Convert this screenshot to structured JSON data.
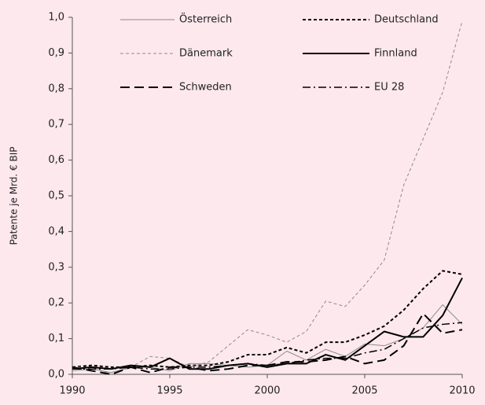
{
  "chart_data": {
    "type": "line",
    "y_label": "Patente je Mrd. € BIP",
    "x": [
      1990,
      1991,
      1992,
      1993,
      1994,
      1995,
      1996,
      1997,
      1998,
      1999,
      2000,
      2001,
      2002,
      2003,
      2004,
      2005,
      2006,
      2007,
      2008,
      2009,
      2010
    ],
    "xlim": [
      1990,
      2010
    ],
    "xticks": [
      1990,
      1995,
      2000,
      2005,
      2010
    ],
    "ylim": [
      0,
      1
    ],
    "yticks": [
      {
        "value": 0,
        "label": "0,0"
      },
      {
        "value": 0.1,
        "label": "0,1"
      },
      {
        "value": 0.2,
        "label": "0,2"
      },
      {
        "value": 0.3,
        "label": "0,3"
      },
      {
        "value": 0.4,
        "label": "0,4"
      },
      {
        "value": 0.5,
        "label": "0,5"
      },
      {
        "value": 0.6,
        "label": "0,6"
      },
      {
        "value": 0.7,
        "label": "0,7"
      },
      {
        "value": 0.8,
        "label": "0,8"
      },
      {
        "value": 0.9,
        "label": "0,9"
      },
      {
        "value": 1,
        "label": "1,0"
      }
    ],
    "grid": false,
    "legend": "top",
    "series": [
      {
        "name": "Österreich",
        "color": "#8c8c8c",
        "style": "solid",
        "width": 1,
        "values": [
          0.01,
          0.015,
          0.005,
          0.02,
          0.02,
          0.01,
          0.03,
          0.03,
          0.025,
          0.02,
          0.025,
          0.065,
          0.04,
          0.07,
          0.05,
          0.085,
          0.08,
          0.1,
          0.13,
          0.195,
          0.14
        ]
      },
      {
        "name": "Deutschland",
        "color": "#000000",
        "style": "dotted",
        "width": 2,
        "values": [
          0.02,
          0.025,
          0.02,
          0.02,
          0.025,
          0.02,
          0.025,
          0.025,
          0.035,
          0.055,
          0.055,
          0.075,
          0.06,
          0.09,
          0.09,
          0.11,
          0.135,
          0.18,
          0.24,
          0.29,
          0.28
        ]
      },
      {
        "name": "Dänemark",
        "color": "#8c8c8c",
        "style": "dotted",
        "width": 1,
        "values": [
          0.02,
          0.02,
          0.0,
          0.02,
          0.05,
          0.045,
          0.02,
          0.035,
          0.08,
          0.125,
          0.11,
          0.09,
          0.12,
          0.205,
          0.19,
          0.25,
          0.32,
          0.53,
          0.66,
          0.79,
          0.99
        ]
      },
      {
        "name": "Finnland",
        "color": "#000000",
        "style": "solid",
        "width": 2,
        "values": [
          0.015,
          0.02,
          0.015,
          0.025,
          0.02,
          0.045,
          0.015,
          0.015,
          0.025,
          0.03,
          0.02,
          0.03,
          0.03,
          0.055,
          0.04,
          0.08,
          0.12,
          0.105,
          0.105,
          0.165,
          0.27
        ]
      },
      {
        "name": "Schweden",
        "color": "#000000",
        "style": "dashed",
        "width": 2,
        "values": [
          0.02,
          0.01,
          0.0,
          0.02,
          0.005,
          0.02,
          0.02,
          0.01,
          0.015,
          0.025,
          0.025,
          0.035,
          0.035,
          0.04,
          0.05,
          0.03,
          0.04,
          0.08,
          0.17,
          0.115,
          0.125
        ]
      },
      {
        "name": "EU 28",
        "color": "#000000",
        "style": "dashdot",
        "width": 1.5,
        "values": [
          0.015,
          0.015,
          0.015,
          0.02,
          0.015,
          0.015,
          0.02,
          0.02,
          0.025,
          0.03,
          0.025,
          0.03,
          0.04,
          0.045,
          0.045,
          0.06,
          0.07,
          0.1,
          0.13,
          0.14,
          0.145
        ]
      }
    ]
  }
}
